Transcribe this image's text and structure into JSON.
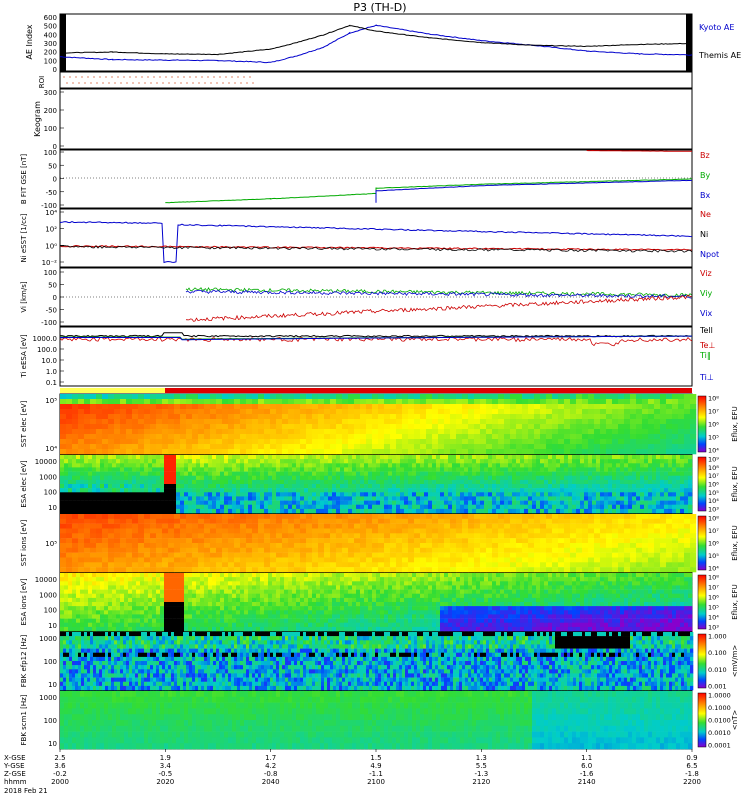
{
  "title": "P3 (TH-D)",
  "footer": {
    "date": "2018 Feb 21",
    "row_labels": [
      "X-GSE",
      "Y-GSE",
      "Z-GSE",
      "hhmm"
    ],
    "columns": [
      {
        "x": "2.5",
        "y": "3.6",
        "z": "-0.2",
        "t": "2000"
      },
      {
        "x": "1.9",
        "y": "3.4",
        "z": "-0.5",
        "t": "2020"
      },
      {
        "x": "1.7",
        "y": "4.2",
        "z": "-0.8",
        "t": "2040"
      },
      {
        "x": "1.5",
        "y": "4.9",
        "z": "-1.1",
        "t": "2100"
      },
      {
        "x": "1.3",
        "y": "5.5",
        "z": "-1.3",
        "t": "2120"
      },
      {
        "x": "1.1",
        "y": "6.0",
        "z": "-1.6",
        "t": "2140"
      },
      {
        "x": "0.9",
        "y": "6.5",
        "z": "-1.8",
        "t": "2200"
      }
    ]
  },
  "chart_data": [
    {
      "type": "line",
      "id": "ae",
      "ylabel": "AE Index",
      "yticks": [
        "600",
        "500",
        "400",
        "300",
        "200",
        "100",
        "0"
      ],
      "ylim": [
        0,
        600
      ],
      "x": [
        2000,
        2010,
        2020,
        2030,
        2040,
        2045,
        2050,
        2055,
        2100,
        2110,
        2120,
        2130,
        2140,
        2150,
        2200
      ],
      "series": [
        {
          "name": "Kyoto AE",
          "color": "#0000cc",
          "values": [
            150,
            120,
            115,
            110,
            90,
            160,
            250,
            400,
            480,
            390,
            320,
            270,
            210,
            180,
            170
          ]
        },
        {
          "name": "Themis AE",
          "color": "#000000",
          "values": [
            190,
            200,
            180,
            175,
            230,
            300,
            380,
            480,
            420,
            350,
            300,
            270,
            260,
            280,
            290
          ]
        }
      ]
    },
    {
      "type": "line",
      "id": "roi",
      "ylabel": "ROI"
    },
    {
      "type": "line",
      "id": "keogram",
      "ylabel": "Keogram",
      "yticks": [
        "300",
        "200",
        "100",
        "0"
      ],
      "ylim": [
        0,
        300
      ]
    },
    {
      "type": "line",
      "id": "bfield",
      "ylabel": "B FIT GSE [nT]",
      "yticks": [
        "100",
        "50",
        "0",
        "-50",
        "-100"
      ],
      "ylim": [
        -120,
        100
      ],
      "x": [
        2000,
        2020,
        2040,
        2060,
        2100,
        2120,
        2140,
        2200
      ],
      "series": [
        {
          "name": "Bz",
          "color": "#cc0000",
          "values": [
            null,
            null,
            null,
            null,
            null,
            null,
            98,
            95
          ]
        },
        {
          "name": "By",
          "color": "#00aa00",
          "values": [
            null,
            -100,
            -85,
            -65,
            -45,
            -30,
            -20,
            -10
          ]
        },
        {
          "name": "Bx",
          "color": "#0000cc",
          "values": [
            null,
            null,
            null,
            -100,
            -55,
            -35,
            -25,
            -15
          ]
        }
      ]
    },
    {
      "type": "line",
      "id": "density",
      "ylabel": "Ni eSST [1/cc]",
      "yticks": [
        "10⁴",
        "10²",
        "10⁰",
        "10⁻²"
      ],
      "series": [
        {
          "name": "Ne",
          "color": "#cc0000",
          "values": [
            0.5,
            0.6,
            0.8,
            0.7,
            0.6,
            0.4,
            0.3
          ]
        },
        {
          "name": "Ni",
          "color": "#000000",
          "values": [
            0.4,
            0.5,
            0.7,
            0.6,
            0.5,
            0.3,
            0.2
          ]
        },
        {
          "name": "Npot",
          "color": "#0000cc",
          "values": [
            1000,
            500,
            300,
            100,
            50,
            20,
            10
          ]
        }
      ]
    },
    {
      "type": "line",
      "id": "velocity",
      "ylabel": "Vi [km/s]",
      "yticks": [
        "100",
        "50",
        "0",
        "-50",
        "-100"
      ],
      "ylim": [
        -120,
        120
      ],
      "series": [
        {
          "name": "Viz",
          "color": "#cc0000",
          "values": [
            null,
            -90,
            -75,
            -50,
            -25,
            -5,
            0
          ]
        },
        {
          "name": "Viy",
          "color": "#00aa00",
          "values": [
            null,
            35,
            28,
            20,
            10,
            5,
            3
          ]
        },
        {
          "name": "Vix",
          "color": "#0000cc",
          "values": [
            null,
            25,
            18,
            10,
            5,
            3,
            0
          ]
        }
      ]
    },
    {
      "type": "line",
      "id": "temperature",
      "ylabel": "Ti eESA [eV]",
      "yticks": [
        "1000.0",
        "100.0",
        "10.0",
        "1.0",
        "0.1"
      ],
      "series": [
        {
          "name": "Tell",
          "color": "#000000"
        },
        {
          "name": "Te⊥",
          "color": "#cc0000"
        },
        {
          "name": "Ti‖",
          "color": "#00aa00"
        },
        {
          "name": "Ti⊥",
          "color": "#0000cc"
        }
      ]
    },
    {
      "type": "heatmap",
      "id": "sst_e",
      "ylabel": "SST elec [eV]",
      "yticks": [
        "10⁵",
        "10⁴"
      ],
      "cbar_label": "Eflux, EFU",
      "cbar_ticks": [
        "10⁸",
        "10⁷",
        "10⁶",
        "10⁵",
        "10⁴"
      ]
    },
    {
      "type": "heatmap",
      "id": "esa_e",
      "ylabel": "ESA elec [eV]",
      "yticks": [
        "10000",
        "1000",
        "100",
        "10"
      ],
      "cbar_label": "Eflux, EFU",
      "cbar_ticks": [
        "10⁹",
        "10⁸",
        "10⁷",
        "10⁶",
        "10⁵",
        "10⁴",
        "10³"
      ]
    },
    {
      "type": "heatmap",
      "id": "sst_i",
      "ylabel": "SST ions [eV]",
      "yticks": [
        "10⁵"
      ],
      "cbar_label": "Eflux, EFU",
      "cbar_ticks": [
        "10⁸",
        "10⁷",
        "10⁶",
        "10⁵",
        "10⁴"
      ]
    },
    {
      "type": "heatmap",
      "id": "esa_i",
      "ylabel": "ESA ions [eV]",
      "yticks": [
        "10000",
        "1000",
        "100",
        "10"
      ],
      "cbar_label": "Eflux, EFU",
      "cbar_ticks": [
        "10⁸",
        "10⁷",
        "10⁶",
        "10⁵",
        "10⁴",
        "10³"
      ]
    },
    {
      "type": "heatmap",
      "id": "fbk_e",
      "ylabel": "FBK efp12 [Hz]",
      "yticks": [
        "1000",
        "100",
        "10"
      ],
      "cbar_label": "<mV/m>",
      "cbar_ticks": [
        "1.000",
        "0.100",
        "0.010",
        "0.001"
      ]
    },
    {
      "type": "heatmap",
      "id": "fbk_b",
      "ylabel": "FBK scm1 [Hz]",
      "yticks": [
        "1000",
        "100",
        "10"
      ],
      "cbar_label": "<nT>",
      "cbar_ticks": [
        "1.0000",
        "0.1000",
        "0.0100",
        "0.0010",
        "0.0001"
      ]
    }
  ]
}
